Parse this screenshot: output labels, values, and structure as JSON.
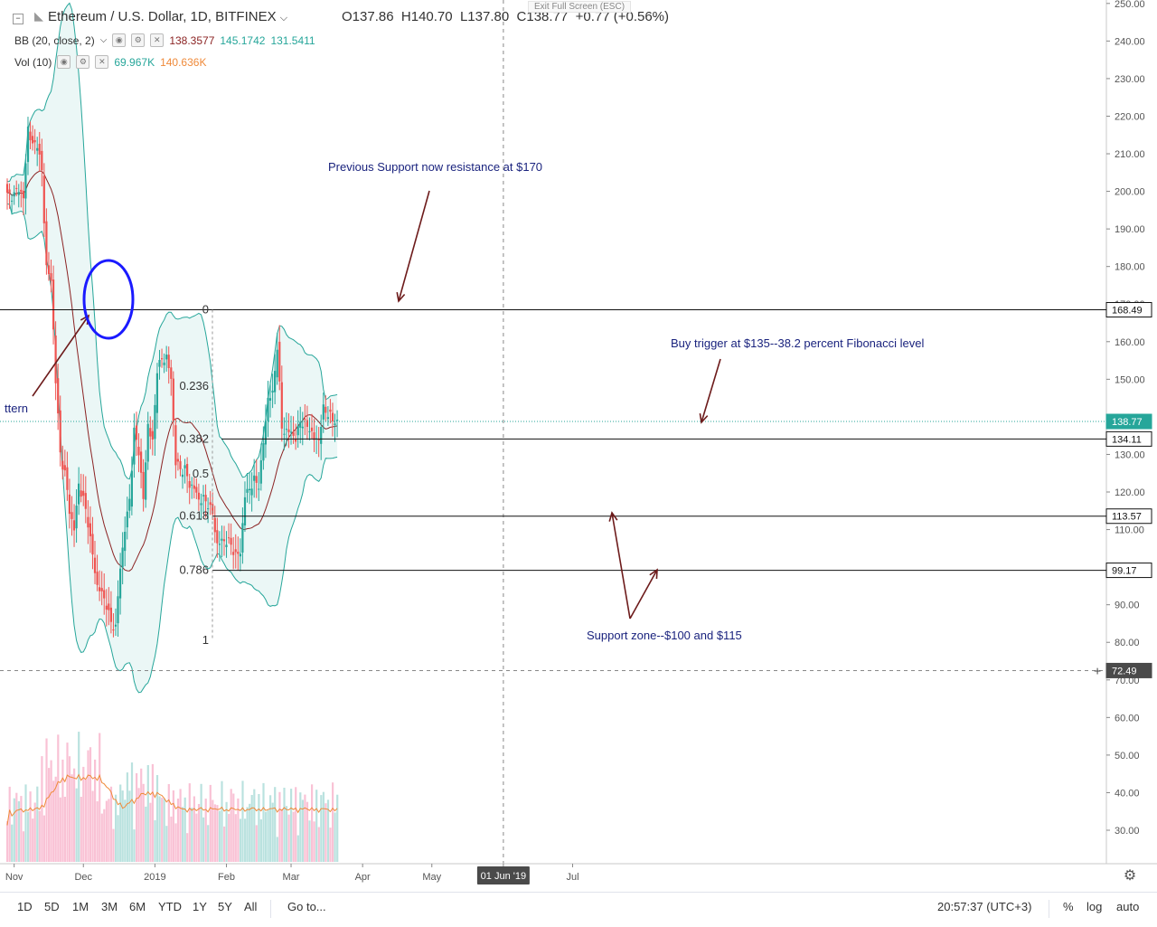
{
  "header": {
    "symbol": "Ethereum / U.S. Dollar, 1D, BITFINEX",
    "open": "O137.86",
    "high": "H140.70",
    "low": "L137.80",
    "close": "C138.77",
    "change": "+0.77 (+0.56%)"
  },
  "indicators": {
    "bb_label": "BB (20, close, 2)",
    "bb_v1": "138.3577",
    "bb_v2": "145.1742",
    "bb_v3": "131.5411",
    "vol_label": "Vol (10)",
    "vol_v1": "69.967K",
    "vol_v2": "140.636K"
  },
  "fullscreen_tip": "Exit Full Screen (ESC)",
  "annotations": {
    "resistance": "Previous Support now resistance at $170",
    "buy_trigger": "Buy trigger at $135--38.2 percent Fibonacci level",
    "support_zone": "Support zone--$100 and $115",
    "pattern": "ttern"
  },
  "fib_levels": [
    {
      "label": "0",
      "value": 168.49
    },
    {
      "label": "0.236",
      "value": 148.1
    },
    {
      "label": "0.382",
      "value": 134.11
    },
    {
      "label": "0.5",
      "value": 124.8
    },
    {
      "label": "0.618",
      "value": 113.57
    },
    {
      "label": "0.786",
      "value": 99.17
    },
    {
      "label": "1",
      "value": 80.5
    }
  ],
  "price_tags": [
    {
      "label": "168.49",
      "value": 168.49
    },
    {
      "label": "138.77",
      "value": 138.77,
      "current": true
    },
    {
      "label": "134.11",
      "value": 134.11
    },
    {
      "label": "113.57",
      "value": 113.57
    },
    {
      "label": "99.17",
      "value": 99.17
    },
    {
      "label": "72.49",
      "value": 72.49,
      "crosshair": true
    }
  ],
  "x_axis": [
    "Nov",
    "Dec",
    "2019",
    "Feb",
    "Mar",
    "Apr",
    "May",
    "01 Jun '19",
    "Jul"
  ],
  "toolbar": {
    "timeframes": [
      "1D",
      "5D",
      "1M",
      "3M",
      "6M",
      "YTD",
      "1Y",
      "5Y",
      "All"
    ],
    "goto": "Go to...",
    "time": "20:57:37 (UTC+3)",
    "percent": "%",
    "log": "log",
    "auto": "auto"
  },
  "colors": {
    "up": "#26a69a",
    "down": "#ef5350",
    "bb_fill": "#e0f2f1",
    "bb_line": "#26a69a",
    "basis": "#8b2323",
    "annotation": "#1a237e",
    "arrow": "#6d1b1b"
  },
  "chart_data": {
    "type": "candlestick",
    "title": "Ethereum / U.S. Dollar, 1D, BITFINEX",
    "y_axis": {
      "ticks": [
        30,
        40,
        50,
        60,
        70,
        80,
        90,
        100,
        110,
        120,
        130,
        140,
        150,
        160,
        170,
        180,
        190,
        200,
        210,
        220,
        230,
        240,
        250
      ],
      "ylim": [
        25,
        250
      ]
    },
    "x_range": [
      "2018-10-29",
      "2019-07-05"
    ],
    "last_close": 138.77,
    "closes": [
      {
        "date": "2018-11-01",
        "close": 199
      },
      {
        "date": "2018-11-03",
        "close": 201
      },
      {
        "date": "2018-11-05",
        "close": 198
      },
      {
        "date": "2018-11-07",
        "close": 217
      },
      {
        "date": "2018-11-09",
        "close": 212
      },
      {
        "date": "2018-11-11",
        "close": 213
      },
      {
        "date": "2018-11-13",
        "close": 205
      },
      {
        "date": "2018-11-15",
        "close": 180
      },
      {
        "date": "2018-11-17",
        "close": 176
      },
      {
        "date": "2018-11-19",
        "close": 150
      },
      {
        "date": "2018-11-21",
        "close": 130
      },
      {
        "date": "2018-11-23",
        "close": 125
      },
      {
        "date": "2018-11-25",
        "close": 115
      },
      {
        "date": "2018-11-27",
        "close": 110
      },
      {
        "date": "2018-11-29",
        "close": 122
      },
      {
        "date": "2018-12-01",
        "close": 118
      },
      {
        "date": "2018-12-03",
        "close": 112
      },
      {
        "date": "2018-12-05",
        "close": 103
      },
      {
        "date": "2018-12-07",
        "close": 95
      },
      {
        "date": "2018-12-09",
        "close": 93
      },
      {
        "date": "2018-12-11",
        "close": 90
      },
      {
        "date": "2018-12-13",
        "close": 85
      },
      {
        "date": "2018-12-15",
        "close": 84
      },
      {
        "date": "2018-12-17",
        "close": 100
      },
      {
        "date": "2018-12-19",
        "close": 110
      },
      {
        "date": "2018-12-21",
        "close": 118
      },
      {
        "date": "2018-12-23",
        "close": 136
      },
      {
        "date": "2018-12-25",
        "close": 131
      },
      {
        "date": "2018-12-27",
        "close": 118
      },
      {
        "date": "2018-12-29",
        "close": 138
      },
      {
        "date": "2018-12-31",
        "close": 133
      },
      {
        "date": "2019-01-02",
        "close": 153
      },
      {
        "date": "2019-01-04",
        "close": 155
      },
      {
        "date": "2019-01-06",
        "close": 156
      },
      {
        "date": "2019-01-08",
        "close": 150
      },
      {
        "date": "2019-01-10",
        "close": 128
      },
      {
        "date": "2019-01-12",
        "close": 126
      },
      {
        "date": "2019-01-14",
        "close": 126
      },
      {
        "date": "2019-01-16",
        "close": 122
      },
      {
        "date": "2019-01-18",
        "close": 121
      },
      {
        "date": "2019-01-20",
        "close": 118
      },
      {
        "date": "2019-01-22",
        "close": 118
      },
      {
        "date": "2019-01-24",
        "close": 117
      },
      {
        "date": "2019-01-26",
        "close": 114
      },
      {
        "date": "2019-01-28",
        "close": 106
      },
      {
        "date": "2019-01-30",
        "close": 107
      },
      {
        "date": "2019-02-01",
        "close": 107
      },
      {
        "date": "2019-02-03",
        "close": 106
      },
      {
        "date": "2019-02-05",
        "close": 103
      },
      {
        "date": "2019-02-07",
        "close": 104
      },
      {
        "date": "2019-02-09",
        "close": 119
      },
      {
        "date": "2019-02-11",
        "close": 121
      },
      {
        "date": "2019-02-13",
        "close": 123
      },
      {
        "date": "2019-02-15",
        "close": 122
      },
      {
        "date": "2019-02-17",
        "close": 133
      },
      {
        "date": "2019-02-19",
        "close": 145
      },
      {
        "date": "2019-02-21",
        "close": 146
      },
      {
        "date": "2019-02-23",
        "close": 159
      },
      {
        "date": "2019-02-25",
        "close": 137
      },
      {
        "date": "2019-02-27",
        "close": 136
      },
      {
        "date": "2019-03-01",
        "close": 136
      },
      {
        "date": "2019-03-03",
        "close": 134
      },
      {
        "date": "2019-03-05",
        "close": 139
      },
      {
        "date": "2019-03-07",
        "close": 138
      },
      {
        "date": "2019-03-09",
        "close": 137
      },
      {
        "date": "2019-03-11",
        "close": 134
      },
      {
        "date": "2019-03-13",
        "close": 134
      },
      {
        "date": "2019-03-15",
        "close": 142
      },
      {
        "date": "2019-03-17",
        "close": 141
      },
      {
        "date": "2019-03-19",
        "close": 139
      },
      {
        "date": "2019-03-21",
        "close": 138.77
      }
    ]
  }
}
